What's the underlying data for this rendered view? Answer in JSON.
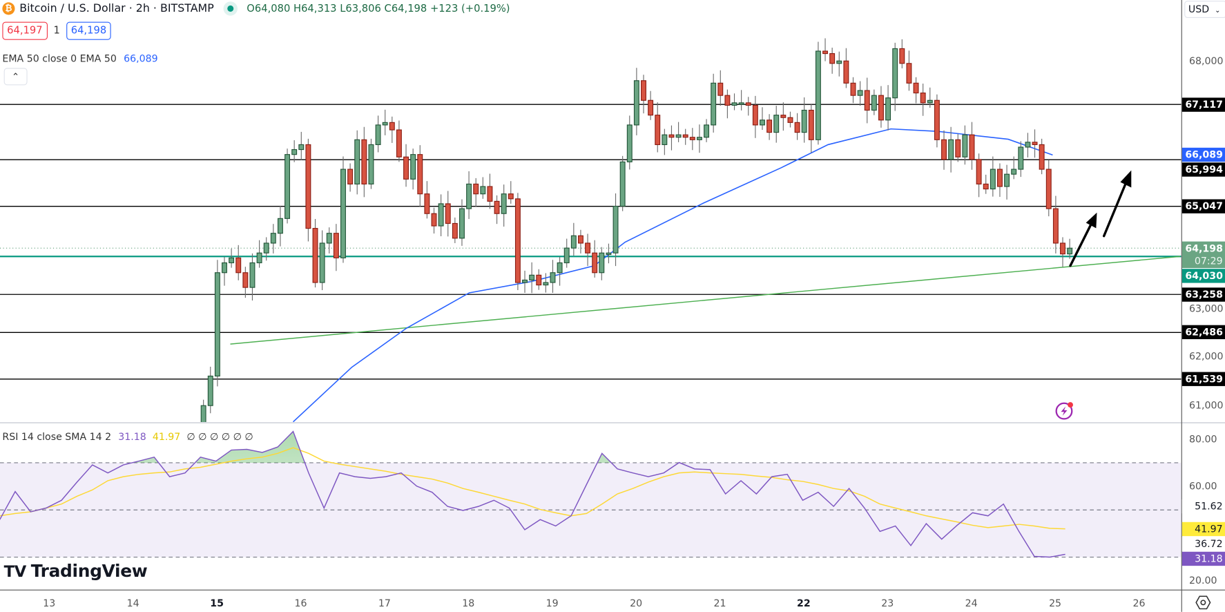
{
  "header": {
    "symbol_title": "Bitcoin / U.S. Dollar · 2h · BITSTAMP",
    "ohlc": "O64,080 H64,313 L63,806 C64,198 +123 (+0.19%)",
    "bid": "64,197",
    "spread": "1",
    "ask": "64,198",
    "ema_legend": "EMA 50 close 0 EMA 50",
    "ema_value": "66,089",
    "collapse_icon": "chevron-up-icon",
    "currency": "USD"
  },
  "rsi_legend": {
    "label": "RSI 14 close SMA 14 2",
    "rsi_value": "31.18",
    "sma_value": "41.97",
    "empty_values": "∅ ∅ ∅ ∅ ∅ ∅"
  },
  "colors": {
    "up": "#6ba583",
    "up_border": "#225437",
    "down": "#d75442",
    "down_border": "#8a1c12",
    "ema": "#2962ff",
    "support_line": "#089981",
    "trend_line": "#4caf50",
    "rsi": "#7e57c2",
    "rsi_sma": "#fdd835",
    "level_lines": "#000000"
  },
  "logo": "TradingView",
  "price_axis": {
    "ticks": [
      {
        "value": 68000,
        "label": "68,000"
      },
      {
        "value": 63000,
        "label": "63,000"
      },
      {
        "value": 62000,
        "label": "62,000"
      },
      {
        "value": 61000,
        "label": "61,000"
      }
    ]
  },
  "time_axis": {
    "ticks": [
      {
        "day": 13,
        "label": "13",
        "bold": false
      },
      {
        "day": 14,
        "label": "14",
        "bold": false
      },
      {
        "day": 15,
        "label": "15",
        "bold": true
      },
      {
        "day": 16,
        "label": "16",
        "bold": false
      },
      {
        "day": 17,
        "label": "17",
        "bold": false
      },
      {
        "day": 18,
        "label": "18",
        "bold": false
      },
      {
        "day": 19,
        "label": "19",
        "bold": false
      },
      {
        "day": 20,
        "label": "20",
        "bold": false
      },
      {
        "day": 21,
        "label": "21",
        "bold": false
      },
      {
        "day": 22,
        "label": "22",
        "bold": true
      },
      {
        "day": 23,
        "label": "23",
        "bold": false
      },
      {
        "day": 24,
        "label": "24",
        "bold": false
      },
      {
        "day": 25,
        "label": "25",
        "bold": false
      },
      {
        "day": 26,
        "label": "26",
        "bold": false
      }
    ]
  },
  "levels": [
    {
      "value": 67117,
      "label": "67,117"
    },
    {
      "value": 65994,
      "label": "65,994"
    },
    {
      "value": 65047,
      "label": "65,047"
    },
    {
      "value": 63258,
      "label": "63,258"
    },
    {
      "value": 62486,
      "label": "62,486"
    },
    {
      "value": 61539,
      "label": "61,539"
    }
  ],
  "support": {
    "value": 64030,
    "label": "64,030"
  },
  "last_price": {
    "value": 64198,
    "label": "64,198",
    "countdown": "07:29"
  },
  "ema_badge": {
    "value": 66089,
    "label": "66,089"
  },
  "rsi_axis": {
    "ticks": [
      {
        "value": 80,
        "label": "80.00"
      },
      {
        "value": 60,
        "label": "60.00"
      },
      {
        "value": 20,
        "label": "20.00"
      }
    ],
    "markers": [
      {
        "value": 51.62,
        "label": "51.62",
        "style": "plain"
      },
      {
        "value": 41.97,
        "label": "41.97",
        "style": "sma"
      },
      {
        "value": 36.72,
        "label": "36.72",
        "style": "plain"
      },
      {
        "value": 31.18,
        "label": "31.18",
        "style": "rsi"
      }
    ],
    "bands": [
      70,
      50,
      30
    ]
  },
  "chart_data": [
    {
      "type": "candlestick",
      "title": "Bitcoin / U.S. Dollar · 2h · BITSTAMP",
      "x_unit": "day of month",
      "first_bar_day": 14.84,
      "bar_hours": 2,
      "first_open": 60500,
      "closes": [
        61000,
        61600,
        63700,
        63900,
        64000,
        63700,
        63400,
        63900,
        64100,
        64300,
        64500,
        64800,
        66100,
        66200,
        66300,
        64600,
        63500,
        64300,
        64500,
        64000,
        65800,
        65500,
        66400,
        65500,
        66300,
        66700,
        66750,
        66600,
        66050,
        65600,
        66100,
        65300,
        64900,
        64650,
        65100,
        64700,
        64400,
        65000,
        65500,
        65300,
        65450,
        65150,
        64900,
        65300,
        65200,
        63500,
        63550,
        63650,
        63450,
        63500,
        63700,
        63900,
        64200,
        64450,
        64300,
        64100,
        63700,
        64100,
        64100,
        65050,
        65950,
        66700,
        67600,
        67200,
        66900,
        66300,
        66500,
        66450,
        66500,
        66450,
        66400,
        66450,
        66700,
        67550,
        67300,
        67100,
        67150,
        67150,
        67100,
        66700,
        66800,
        66550,
        66900,
        66850,
        66750,
        66550,
        67000,
        66400,
        68200,
        68150,
        67950,
        68000,
        67550,
        67300,
        67400,
        67000,
        67300,
        66800,
        67250,
        68250,
        67950,
        67550,
        67350,
        67150,
        67200,
        66400,
        66000,
        66400,
        66050,
        66500,
        66000,
        65500,
        65400,
        65800,
        65450,
        65700,
        65800,
        66250,
        66350,
        66300,
        65800,
        65000,
        64300,
        64080,
        64198
      ],
      "ema50": [
        [
          15.91,
          60670
        ],
        [
          16.61,
          61780
        ],
        [
          17.26,
          62570
        ],
        [
          18.01,
          63290
        ],
        [
          18.75,
          63520
        ],
        [
          19.5,
          63840
        ],
        [
          19.87,
          64320
        ],
        [
          20.8,
          65110
        ],
        [
          21.73,
          65830
        ],
        [
          22.29,
          66300
        ],
        [
          23.04,
          66620
        ],
        [
          23.6,
          66570
        ],
        [
          24.44,
          66410
        ],
        [
          24.97,
          66090
        ]
      ],
      "trend_line": [
        [
          15.16,
          62250
        ],
        [
          26.49,
          64030
        ]
      ],
      "ylim": [
        60500,
        69000
      ]
    },
    {
      "type": "line",
      "title": "RSI 14 close SMA 14 2",
      "x_start_day": 12.41,
      "x_end_day": 25.12,
      "ylim": [
        20,
        80
      ],
      "series": [
        {
          "name": "RSI",
          "values": [
            45.9,
            57.8,
            49.2,
            50.8,
            54.1,
            61.8,
            69.1,
            65.7,
            69.1,
            70.7,
            72.4,
            64.1,
            65.7,
            72.4,
            70.7,
            75.4,
            75.7,
            74.4,
            76.7,
            83.3,
            65.7,
            50.8,
            65.7,
            64.1,
            63.4,
            64.1,
            65.7,
            60.1,
            57.5,
            51.5,
            49.8,
            51.5,
            54.1,
            50.8,
            41.6,
            45.9,
            43.2,
            47.5,
            60.8,
            74.0,
            67.4,
            65.7,
            64.1,
            65.7,
            70.1,
            67.4,
            67.1,
            56.8,
            62.4,
            56.8,
            64.1,
            65.1,
            54.1,
            57.5,
            51.5,
            59.1,
            50.8,
            40.9,
            43.2,
            34.9,
            44.2,
            37.6,
            43.5,
            48.8,
            47.5,
            52.5,
            40.9,
            30.3,
            30.0,
            31.18
          ]
        },
        {
          "name": "SMA",
          "values": [
            47.5,
            48.5,
            49.2,
            50.8,
            52.5,
            55.8,
            58.5,
            62.4,
            64.1,
            65.1,
            65.7,
            66.1,
            67.4,
            68.1,
            69.4,
            70.7,
            71.7,
            72.4,
            74.0,
            76.4,
            74.0,
            70.7,
            69.4,
            68.4,
            67.4,
            66.4,
            65.1,
            64.1,
            63.1,
            61.4,
            59.1,
            57.5,
            55.8,
            54.1,
            52.5,
            50.2,
            48.8,
            47.5,
            48.5,
            52.5,
            56.8,
            59.1,
            61.8,
            64.1,
            65.7,
            66.1,
            65.7,
            65.4,
            65.1,
            64.4,
            63.8,
            62.8,
            62.1,
            60.8,
            59.1,
            58.1,
            55.8,
            52.5,
            50.8,
            49.2,
            47.5,
            46.2,
            44.9,
            43.5,
            42.5,
            43.2,
            43.9,
            43.2,
            42.2,
            41.97
          ]
        }
      ]
    }
  ]
}
